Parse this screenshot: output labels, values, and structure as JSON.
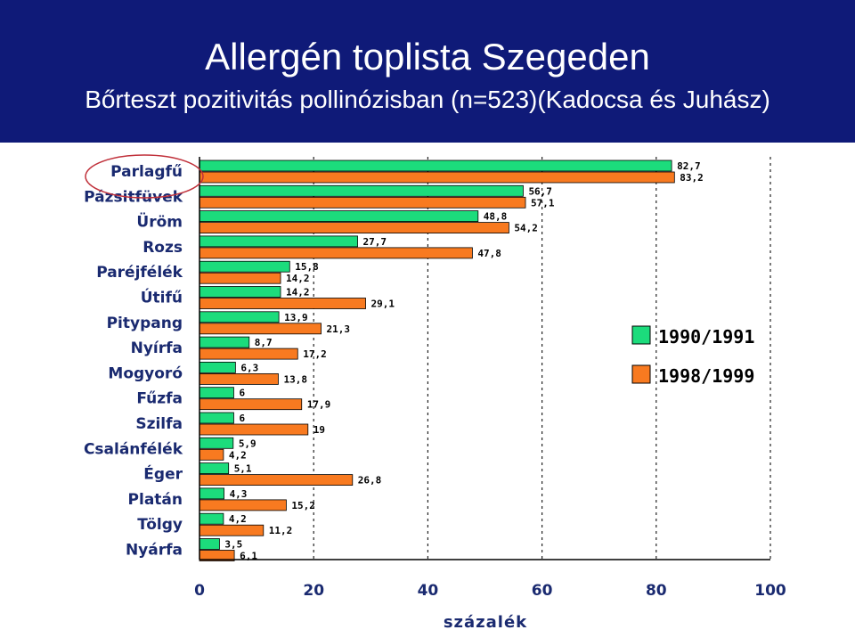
{
  "header": {
    "title": "Allergén toplista Szegeden",
    "subtitle": "Bőrteszt  pozitivitás pollinózisban (n=523)(Kadocsa és Juhász)"
  },
  "colors": {
    "header_bg": "#0f1a78",
    "series_1990": "#1cdc7c",
    "series_1998": "#f87a20",
    "highlight_circle": "#c0303a"
  },
  "chart_data": {
    "type": "bar",
    "orientation": "horizontal",
    "categories": [
      "Parlagfű",
      "Pázsitfüvek",
      "Üröm",
      "Rozs",
      "Paréjfélék",
      "Útifű",
      "Pitypang",
      "Nyírfa",
      "Mogyoró",
      "Fűzfa",
      "Szilfa",
      "Csalánfélék",
      "Éger",
      "Platán",
      "Tölgy",
      "Nyárfa"
    ],
    "series": [
      {
        "name": "1990/1991",
        "color": "#1cdc7c",
        "values": [
          82.7,
          56.7,
          48.8,
          27.7,
          15.8,
          14.2,
          13.9,
          8.7,
          6.3,
          6,
          6,
          5.9,
          5.1,
          4.3,
          4.2,
          3.5
        ],
        "labels": [
          "82,7",
          "56,7",
          "48,8",
          "27,7",
          "15,8",
          "14,2",
          "13,9",
          "8,7",
          "6,3",
          "6",
          "6",
          "5,9",
          "5,1",
          "4,3",
          "4,2",
          "3,5"
        ]
      },
      {
        "name": "1998/1999",
        "color": "#f87a20",
        "values": [
          83.2,
          57.1,
          54.2,
          47.8,
          14.2,
          29.1,
          21.3,
          17.2,
          13.8,
          17.9,
          19,
          4.2,
          26.8,
          15.2,
          11.2,
          6.1
        ],
        "labels": [
          "83,2",
          "57,1",
          "54,2",
          "47,8",
          "14,2",
          "29,1",
          "21,3",
          "17,2",
          "13,8",
          "17,9",
          "19",
          "4,2",
          "26,8",
          "15,2",
          "11,2",
          "6,1"
        ]
      }
    ],
    "xlabel": "százalék",
    "ylabel": "",
    "xlim": [
      0,
      100
    ],
    "xticks": [
      "0",
      "20",
      "40",
      "60",
      "80",
      "100"
    ],
    "grid": "vertical dashed",
    "legend_position": "right",
    "highlighted_category": "Parlagfű"
  }
}
